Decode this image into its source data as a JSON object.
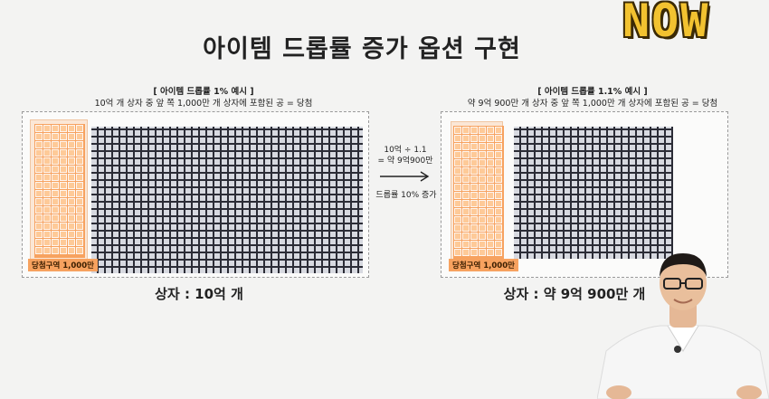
{
  "logo": {
    "text": "NOW"
  },
  "title": "아이템 드롭률 증가 옵션 구현",
  "left": {
    "subtitle_line1": "[ 아이템 드롭률 1% 예시 ]",
    "subtitle_line2": "10억 개 상자 중 앞 쪽 1,000만 개 상자에 포함된 공 = 당첨",
    "win_zone_label": "당첨구역 1,000만",
    "caption": "상자 : 10억 개"
  },
  "middle": {
    "formula_line1": "10억 ÷ 1.1",
    "formula_line2": "= 약 9억900만",
    "note": "드롭률 10% 증가"
  },
  "right": {
    "subtitle_line1": "[ 아이템 드롭률 1.1% 예시 ]",
    "subtitle_line2": "약 9억 900만 개 상자 중 앞 쪽 1,000만 개 상자에 포함된 공 = 당첨",
    "win_zone_label": "당첨구역 1,000만",
    "caption": "상자 : 약 9억 900만 개"
  },
  "colors": {
    "win_zone": "#f7a25f",
    "box_grid": "#2b2c36"
  },
  "icons": {
    "arrow": "right-arrow-icon",
    "presenter": "presenter-video"
  }
}
